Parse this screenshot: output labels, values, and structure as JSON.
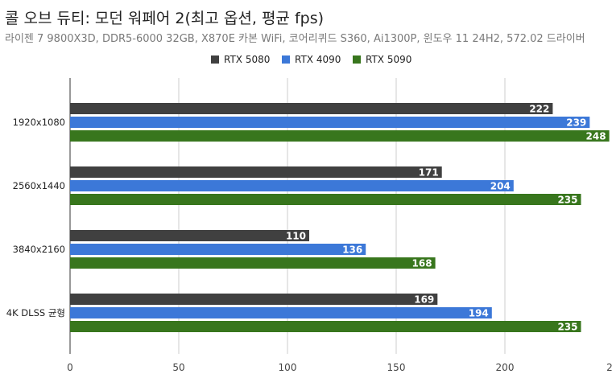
{
  "chart_data": {
    "type": "bar",
    "orientation": "horizontal",
    "title": "콜 오브 듀티: 모던 워페어 2(최고 옵션, 평균 fps)",
    "subtitle": "라이젠 7 9800X3D, DDR5-6000 32GB, X870E 카본 WiFi, 코어리퀴드 S360, Ai1300P, 윈도우 11 24H2, 572.02 드라이버",
    "categories": [
      "1920x1080",
      "2560x1440",
      "3840x2160",
      "4K DLSS 균형"
    ],
    "series": [
      {
        "name": "RTX 5080",
        "color": "#404040",
        "values": [
          222,
          171,
          110,
          169
        ]
      },
      {
        "name": "RTX 4090",
        "color": "#3c78d8",
        "values": [
          239,
          204,
          136,
          194
        ]
      },
      {
        "name": "RTX 5090",
        "color": "#38761d",
        "values": [
          248,
          235,
          168,
          235
        ]
      }
    ],
    "x_ticks": [
      "0",
      "50",
      "100",
      "150",
      "200",
      "2"
    ],
    "xlim": [
      0,
      250
    ],
    "legend_position": "top-center",
    "grid": true
  }
}
